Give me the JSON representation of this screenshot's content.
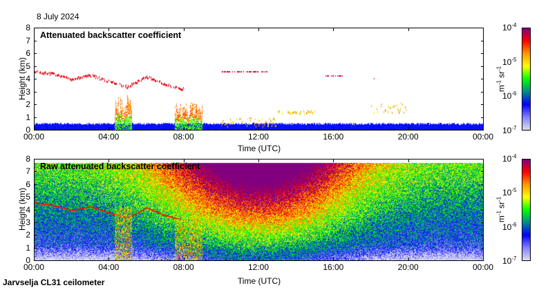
{
  "header": {
    "date": "8 July 2024"
  },
  "footer": {
    "instrument": "Jarvselja CL31 ceilometer"
  },
  "colors": {
    "cmap": [
      "#dcdcec",
      "#8080ff",
      "#0000ff",
      "#008c8c",
      "#00ff00",
      "#ffff00",
      "#ff9900",
      "#ff0000",
      "#800080"
    ]
  },
  "chart_data": [
    {
      "type": "heatmap",
      "title": "Attenuated backscatter coefficient",
      "xlabel": "Time (UTC)",
      "ylabel": "Height (km)",
      "xticks": [
        "00:00",
        "04:00",
        "08:00",
        "12:00",
        "16:00",
        "20:00",
        "00:00"
      ],
      "yticks": [
        "0",
        "1",
        "2",
        "3",
        "4",
        "5",
        "6",
        "7",
        "8"
      ],
      "xlim_hours": [
        0,
        24
      ],
      "ylim_km": [
        0,
        8
      ],
      "colorbar": {
        "unit_base": "m",
        "unit_exp": "-1",
        "unit_base2": "sr",
        "unit_exp2": "-1",
        "ticks": [
          {
            "base": "10",
            "exp": "-4"
          },
          {
            "base": "10",
            "exp": "-5"
          },
          {
            "base": "10",
            "exp": "-6"
          },
          {
            "base": "10",
            "exp": "-7"
          }
        ],
        "range_log10": [
          -7,
          -4
        ]
      },
      "features": {
        "surface_layer_top_km": 0.4,
        "elevated_layer": [
          [
            0,
            4.6
          ],
          [
            1,
            4.4
          ],
          [
            2,
            4.0
          ],
          [
            3,
            4.3
          ],
          [
            4,
            3.8
          ],
          [
            5,
            3.4
          ],
          [
            6,
            4.2
          ],
          [
            7,
            3.6
          ],
          [
            8,
            3.2
          ]
        ],
        "convective_plumes_hours": [
          [
            4.3,
            5.2,
            2.8
          ],
          [
            7.5,
            9.0,
            2.2
          ]
        ],
        "clouds": [
          [
            10,
            13,
            0.3,
            1.0
          ],
          [
            13,
            15,
            1.3,
            1.6
          ],
          [
            18,
            20,
            1.4,
            2.2
          ]
        ],
        "high_clouds": [
          [
            10,
            12.5,
            4.6
          ],
          [
            15.5,
            16.5,
            4.3
          ],
          [
            18,
            18.2,
            4.1
          ]
        ]
      }
    },
    {
      "type": "heatmap",
      "title": "Raw attenuated backscatter coefficient",
      "xlabel": "Time (UTC)",
      "ylabel": "Height (km)",
      "xticks": [
        "00:00",
        "04:00",
        "08:00",
        "12:00",
        "16:00",
        "20:00",
        "00:00"
      ],
      "yticks": [
        "0",
        "1",
        "2",
        "3",
        "4",
        "5",
        "6",
        "7",
        "8"
      ],
      "xlim_hours": [
        0,
        24
      ],
      "ylim_km": [
        0,
        8
      ],
      "colorbar": {
        "unit_base": "m",
        "unit_exp": "-1",
        "unit_base2": "sr",
        "unit_exp2": "-1",
        "ticks": [
          {
            "base": "10",
            "exp": "-4"
          },
          {
            "base": "10",
            "exp": "-5"
          },
          {
            "base": "10",
            "exp": "-6"
          },
          {
            "base": "10",
            "exp": "-7"
          }
        ],
        "range_log10": [
          -7,
          -4
        ]
      },
      "data_top_km": 7.7
    }
  ]
}
